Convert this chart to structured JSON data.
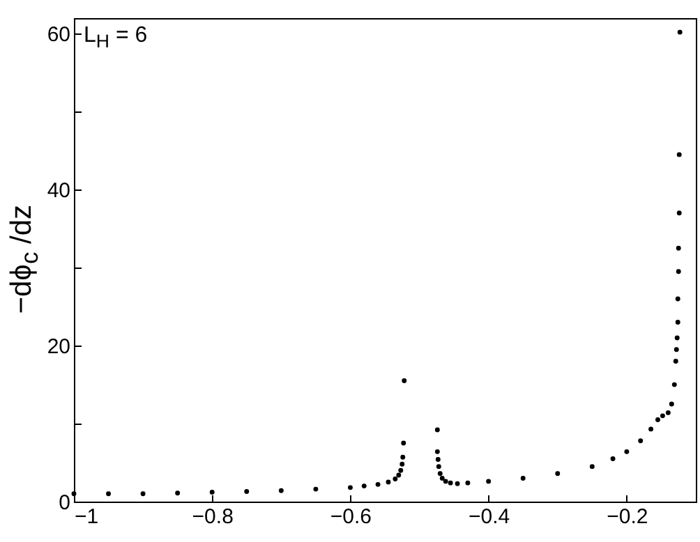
{
  "chart_data": {
    "type": "scatter",
    "ylabel": "−dϕ$_{c}$ /dz",
    "annotations": [
      "L$_{H}$ = 6"
    ],
    "marker": "circle",
    "grid": false,
    "xlim": [
      -1,
      -0.1
    ],
    "xticks": [
      -1,
      -0.8,
      -0.6,
      -0.4,
      -0.2
    ],
    "ylim": [
      0,
      62
    ],
    "yticks": [
      0,
      {
        "value": 10,
        "label": null
      },
      20,
      {
        "value": 30,
        "label": null
      },
      40,
      {
        "value": 50,
        "label": null
      },
      60
    ],
    "series": [
      {
        "color": "#000000",
        "x": [
          -1,
          -0.95,
          -0.9,
          -0.85,
          -0.8,
          -0.75,
          -0.7,
          -0.65,
          -0.6,
          -0.58,
          -0.56,
          -0.545,
          -0.535,
          -0.53,
          -0.527,
          -0.525,
          -0.524,
          -0.523,
          -0.522,
          -0.474,
          -0.474,
          -0.473,
          -0.472,
          -0.47,
          -0.467,
          -0.462,
          -0.455,
          -0.445,
          -0.43,
          -0.4,
          -0.35,
          -0.3,
          -0.25,
          -0.22,
          -0.2,
          -0.18,
          -0.165,
          -0.155,
          -0.148,
          -0.14,
          -0.135,
          -0.131,
          -0.129,
          -0.128,
          -0.127,
          -0.126,
          -0.126,
          -0.125,
          -0.125,
          -0.124,
          -0.124,
          -0.123
        ],
        "values": [
          1.0,
          1.0,
          1.0,
          1.1,
          1.2,
          1.3,
          1.4,
          1.6,
          1.8,
          2.0,
          2.2,
          2.5,
          2.9,
          3.4,
          4.0,
          4.8,
          5.7,
          7.5,
          15.5,
          9.2,
          6.4,
          5.4,
          4.5,
          3.6,
          3.0,
          2.6,
          2.4,
          2.3,
          2.4,
          2.6,
          3.0,
          3.6,
          4.5,
          5.5,
          6.4,
          7.8,
          9.3,
          10.5,
          11.0,
          11.4,
          12.5,
          15,
          18,
          19.5,
          21,
          23,
          26,
          29.5,
          32.5,
          37,
          44.5,
          60.2
        ]
      }
    ]
  }
}
